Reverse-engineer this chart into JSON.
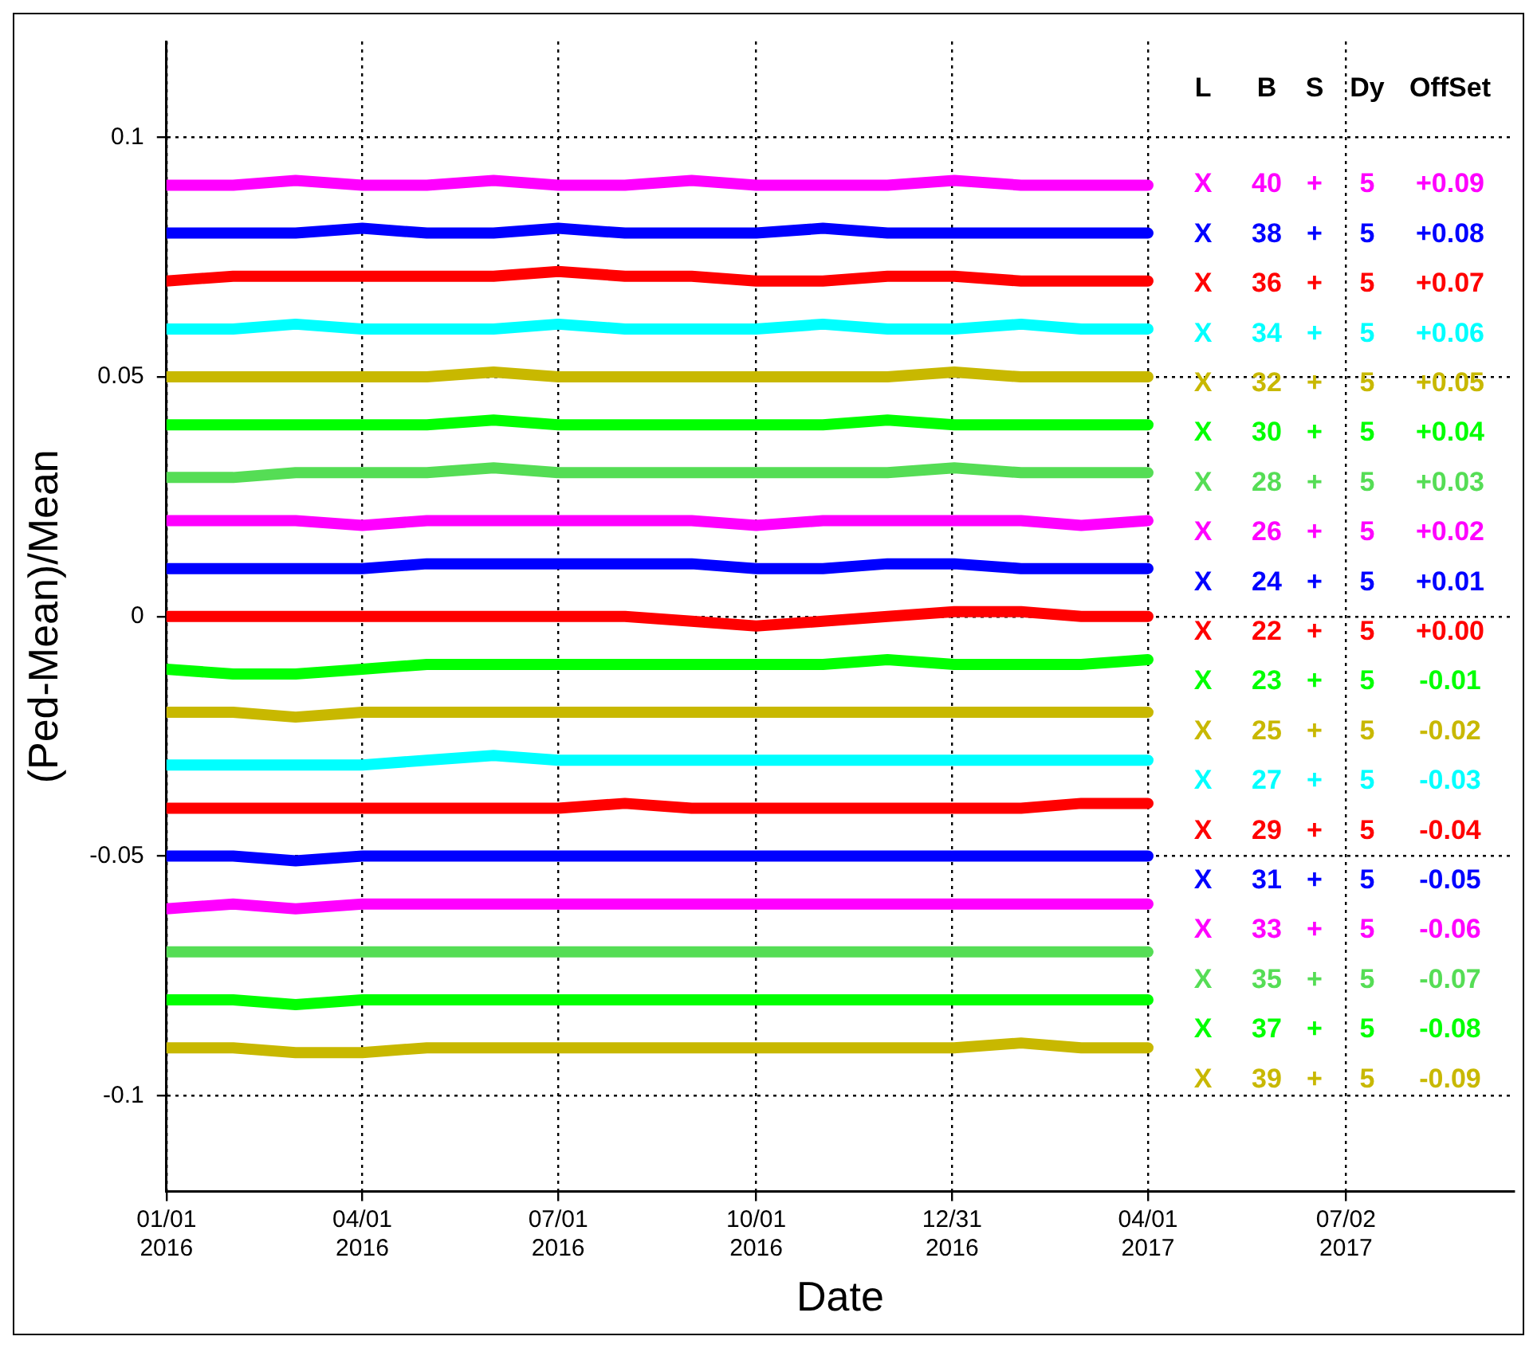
{
  "chart_data": {
    "type": "line",
    "xlabel": "Date",
    "ylabel": "(Ped-Mean)/Mean",
    "legend_title": "L B S Dy OffSet",
    "grid": true,
    "xlim": [
      "2016-01-01",
      "2017-09-18"
    ],
    "xticks": [
      {
        "value": "2016-01-01",
        "label": "01/01\n2016"
      },
      {
        "value": "2016-04-01",
        "label": "04/01\n2016"
      },
      {
        "value": "2016-07-01",
        "label": "07/01\n2016"
      },
      {
        "value": "2016-10-01",
        "label": "10/01\n2016"
      },
      {
        "value": "2016-12-31",
        "label": "12/31\n2016"
      },
      {
        "value": "2017-04-01",
        "label": "04/01\n2017"
      },
      {
        "value": "2017-07-02",
        "label": "07/02\n2017"
      }
    ],
    "ylim": [
      -0.12,
      0.12
    ],
    "yticks": [
      -0.1,
      -0.05,
      0,
      0.05,
      0.1
    ],
    "x": [
      "2016-01-01",
      "2016-02-01",
      "2016-03-01",
      "2016-04-01",
      "2016-05-01",
      "2016-06-01",
      "2016-07-01",
      "2016-08-01",
      "2016-09-01",
      "2016-10-01",
      "2016-11-01",
      "2016-12-01",
      "2017-01-01",
      "2017-02-01",
      "2017-03-01",
      "2017-04-01"
    ],
    "series": [
      {
        "name": "X 40 + 5 +0.09",
        "color": "#ff00ff",
        "values": [
          0.09,
          0.09,
          0.091,
          0.09,
          0.09,
          0.091,
          0.09,
          0.09,
          0.091,
          0.09,
          0.09,
          0.09,
          0.091,
          0.09,
          0.09,
          0.09
        ]
      },
      {
        "name": "X 38 + 5 +0.08",
        "color": "#0000ff",
        "values": [
          0.08,
          0.08,
          0.08,
          0.081,
          0.08,
          0.08,
          0.081,
          0.08,
          0.08,
          0.08,
          0.081,
          0.08,
          0.08,
          0.08,
          0.08,
          0.08
        ]
      },
      {
        "name": "X 36 + 5 +0.07",
        "color": "#ff0000",
        "values": [
          0.07,
          0.071,
          0.071,
          0.071,
          0.071,
          0.071,
          0.072,
          0.071,
          0.071,
          0.07,
          0.07,
          0.071,
          0.071,
          0.07,
          0.07,
          0.07
        ]
      },
      {
        "name": "X 34 + 5 +0.06",
        "color": "#00ffff",
        "values": [
          0.06,
          0.06,
          0.061,
          0.06,
          0.06,
          0.06,
          0.061,
          0.06,
          0.06,
          0.06,
          0.061,
          0.06,
          0.06,
          0.061,
          0.06,
          0.06
        ]
      },
      {
        "name": "X 32 + 5 +0.05",
        "color": "#c8b800",
        "values": [
          0.05,
          0.05,
          0.05,
          0.05,
          0.05,
          0.051,
          0.05,
          0.05,
          0.05,
          0.05,
          0.05,
          0.05,
          0.051,
          0.05,
          0.05,
          0.05
        ]
      },
      {
        "name": "X 30 + 5 +0.04",
        "color": "#00ff00",
        "values": [
          0.04,
          0.04,
          0.04,
          0.04,
          0.04,
          0.041,
          0.04,
          0.04,
          0.04,
          0.04,
          0.04,
          0.041,
          0.04,
          0.04,
          0.04,
          0.04
        ]
      },
      {
        "name": "X 28 + 5 +0.03",
        "color": "#55dd55",
        "values": [
          0.029,
          0.029,
          0.03,
          0.03,
          0.03,
          0.031,
          0.03,
          0.03,
          0.03,
          0.03,
          0.03,
          0.03,
          0.031,
          0.03,
          0.03,
          0.03
        ]
      },
      {
        "name": "X 26 + 5 +0.02",
        "color": "#ff00ff",
        "values": [
          0.02,
          0.02,
          0.02,
          0.019,
          0.02,
          0.02,
          0.02,
          0.02,
          0.02,
          0.019,
          0.02,
          0.02,
          0.02,
          0.02,
          0.019,
          0.02
        ]
      },
      {
        "name": "X 24 + 5 +0.01",
        "color": "#0000ff",
        "values": [
          0.01,
          0.01,
          0.01,
          0.01,
          0.011,
          0.011,
          0.011,
          0.011,
          0.011,
          0.01,
          0.01,
          0.011,
          0.011,
          0.01,
          0.01,
          0.01
        ]
      },
      {
        "name": "X 22 + 5 +0.00",
        "color": "#ff0000",
        "values": [
          0.0,
          0.0,
          0.0,
          0.0,
          0.0,
          0.0,
          0.0,
          0.0,
          -0.001,
          -0.002,
          -0.001,
          0.0,
          0.001,
          0.001,
          0.0,
          0.0
        ]
      },
      {
        "name": "X 23 + 5 -0.01",
        "color": "#00ff00",
        "values": [
          -0.011,
          -0.012,
          -0.012,
          -0.011,
          -0.01,
          -0.01,
          -0.01,
          -0.01,
          -0.01,
          -0.01,
          -0.01,
          -0.009,
          -0.01,
          -0.01,
          -0.01,
          -0.009
        ]
      },
      {
        "name": "X 25 + 5 -0.02",
        "color": "#c8b800",
        "values": [
          -0.02,
          -0.02,
          -0.021,
          -0.02,
          -0.02,
          -0.02,
          -0.02,
          -0.02,
          -0.02,
          -0.02,
          -0.02,
          -0.02,
          -0.02,
          -0.02,
          -0.02,
          -0.02
        ]
      },
      {
        "name": "X 27 + 5 -0.03",
        "color": "#00ffff",
        "values": [
          -0.031,
          -0.031,
          -0.031,
          -0.031,
          -0.03,
          -0.029,
          -0.03,
          -0.03,
          -0.03,
          -0.03,
          -0.03,
          -0.03,
          -0.03,
          -0.03,
          -0.03,
          -0.03
        ]
      },
      {
        "name": "X 29 + 5 -0.04",
        "color": "#ff0000",
        "values": [
          -0.04,
          -0.04,
          -0.04,
          -0.04,
          -0.04,
          -0.04,
          -0.04,
          -0.039,
          -0.04,
          -0.04,
          -0.04,
          -0.04,
          -0.04,
          -0.04,
          -0.039,
          -0.039
        ]
      },
      {
        "name": "X 31 + 5 -0.05",
        "color": "#0000ff",
        "values": [
          -0.05,
          -0.05,
          -0.051,
          -0.05,
          -0.05,
          -0.05,
          -0.05,
          -0.05,
          -0.05,
          -0.05,
          -0.05,
          -0.05,
          -0.05,
          -0.05,
          -0.05,
          -0.05
        ]
      },
      {
        "name": "X 33 + 5 -0.06",
        "color": "#ff00ff",
        "values": [
          -0.061,
          -0.06,
          -0.061,
          -0.06,
          -0.06,
          -0.06,
          -0.06,
          -0.06,
          -0.06,
          -0.06,
          -0.06,
          -0.06,
          -0.06,
          -0.06,
          -0.06,
          -0.06
        ]
      },
      {
        "name": "X 35 + 5 -0.07",
        "color": "#55dd55",
        "values": [
          -0.07,
          -0.07,
          -0.07,
          -0.07,
          -0.07,
          -0.07,
          -0.07,
          -0.07,
          -0.07,
          -0.07,
          -0.07,
          -0.07,
          -0.07,
          -0.07,
          -0.07,
          -0.07
        ]
      },
      {
        "name": "X 37 + 5 -0.08",
        "color": "#00ff00",
        "values": [
          -0.08,
          -0.08,
          -0.081,
          -0.08,
          -0.08,
          -0.08,
          -0.08,
          -0.08,
          -0.08,
          -0.08,
          -0.08,
          -0.08,
          -0.08,
          -0.08,
          -0.08,
          -0.08
        ]
      },
      {
        "name": "X 39 + 5 -0.09",
        "color": "#c8b800",
        "values": [
          -0.09,
          -0.09,
          -0.091,
          -0.091,
          -0.09,
          -0.09,
          -0.09,
          -0.09,
          -0.09,
          -0.09,
          -0.09,
          -0.09,
          -0.09,
          -0.089,
          -0.09,
          -0.09
        ]
      }
    ]
  }
}
